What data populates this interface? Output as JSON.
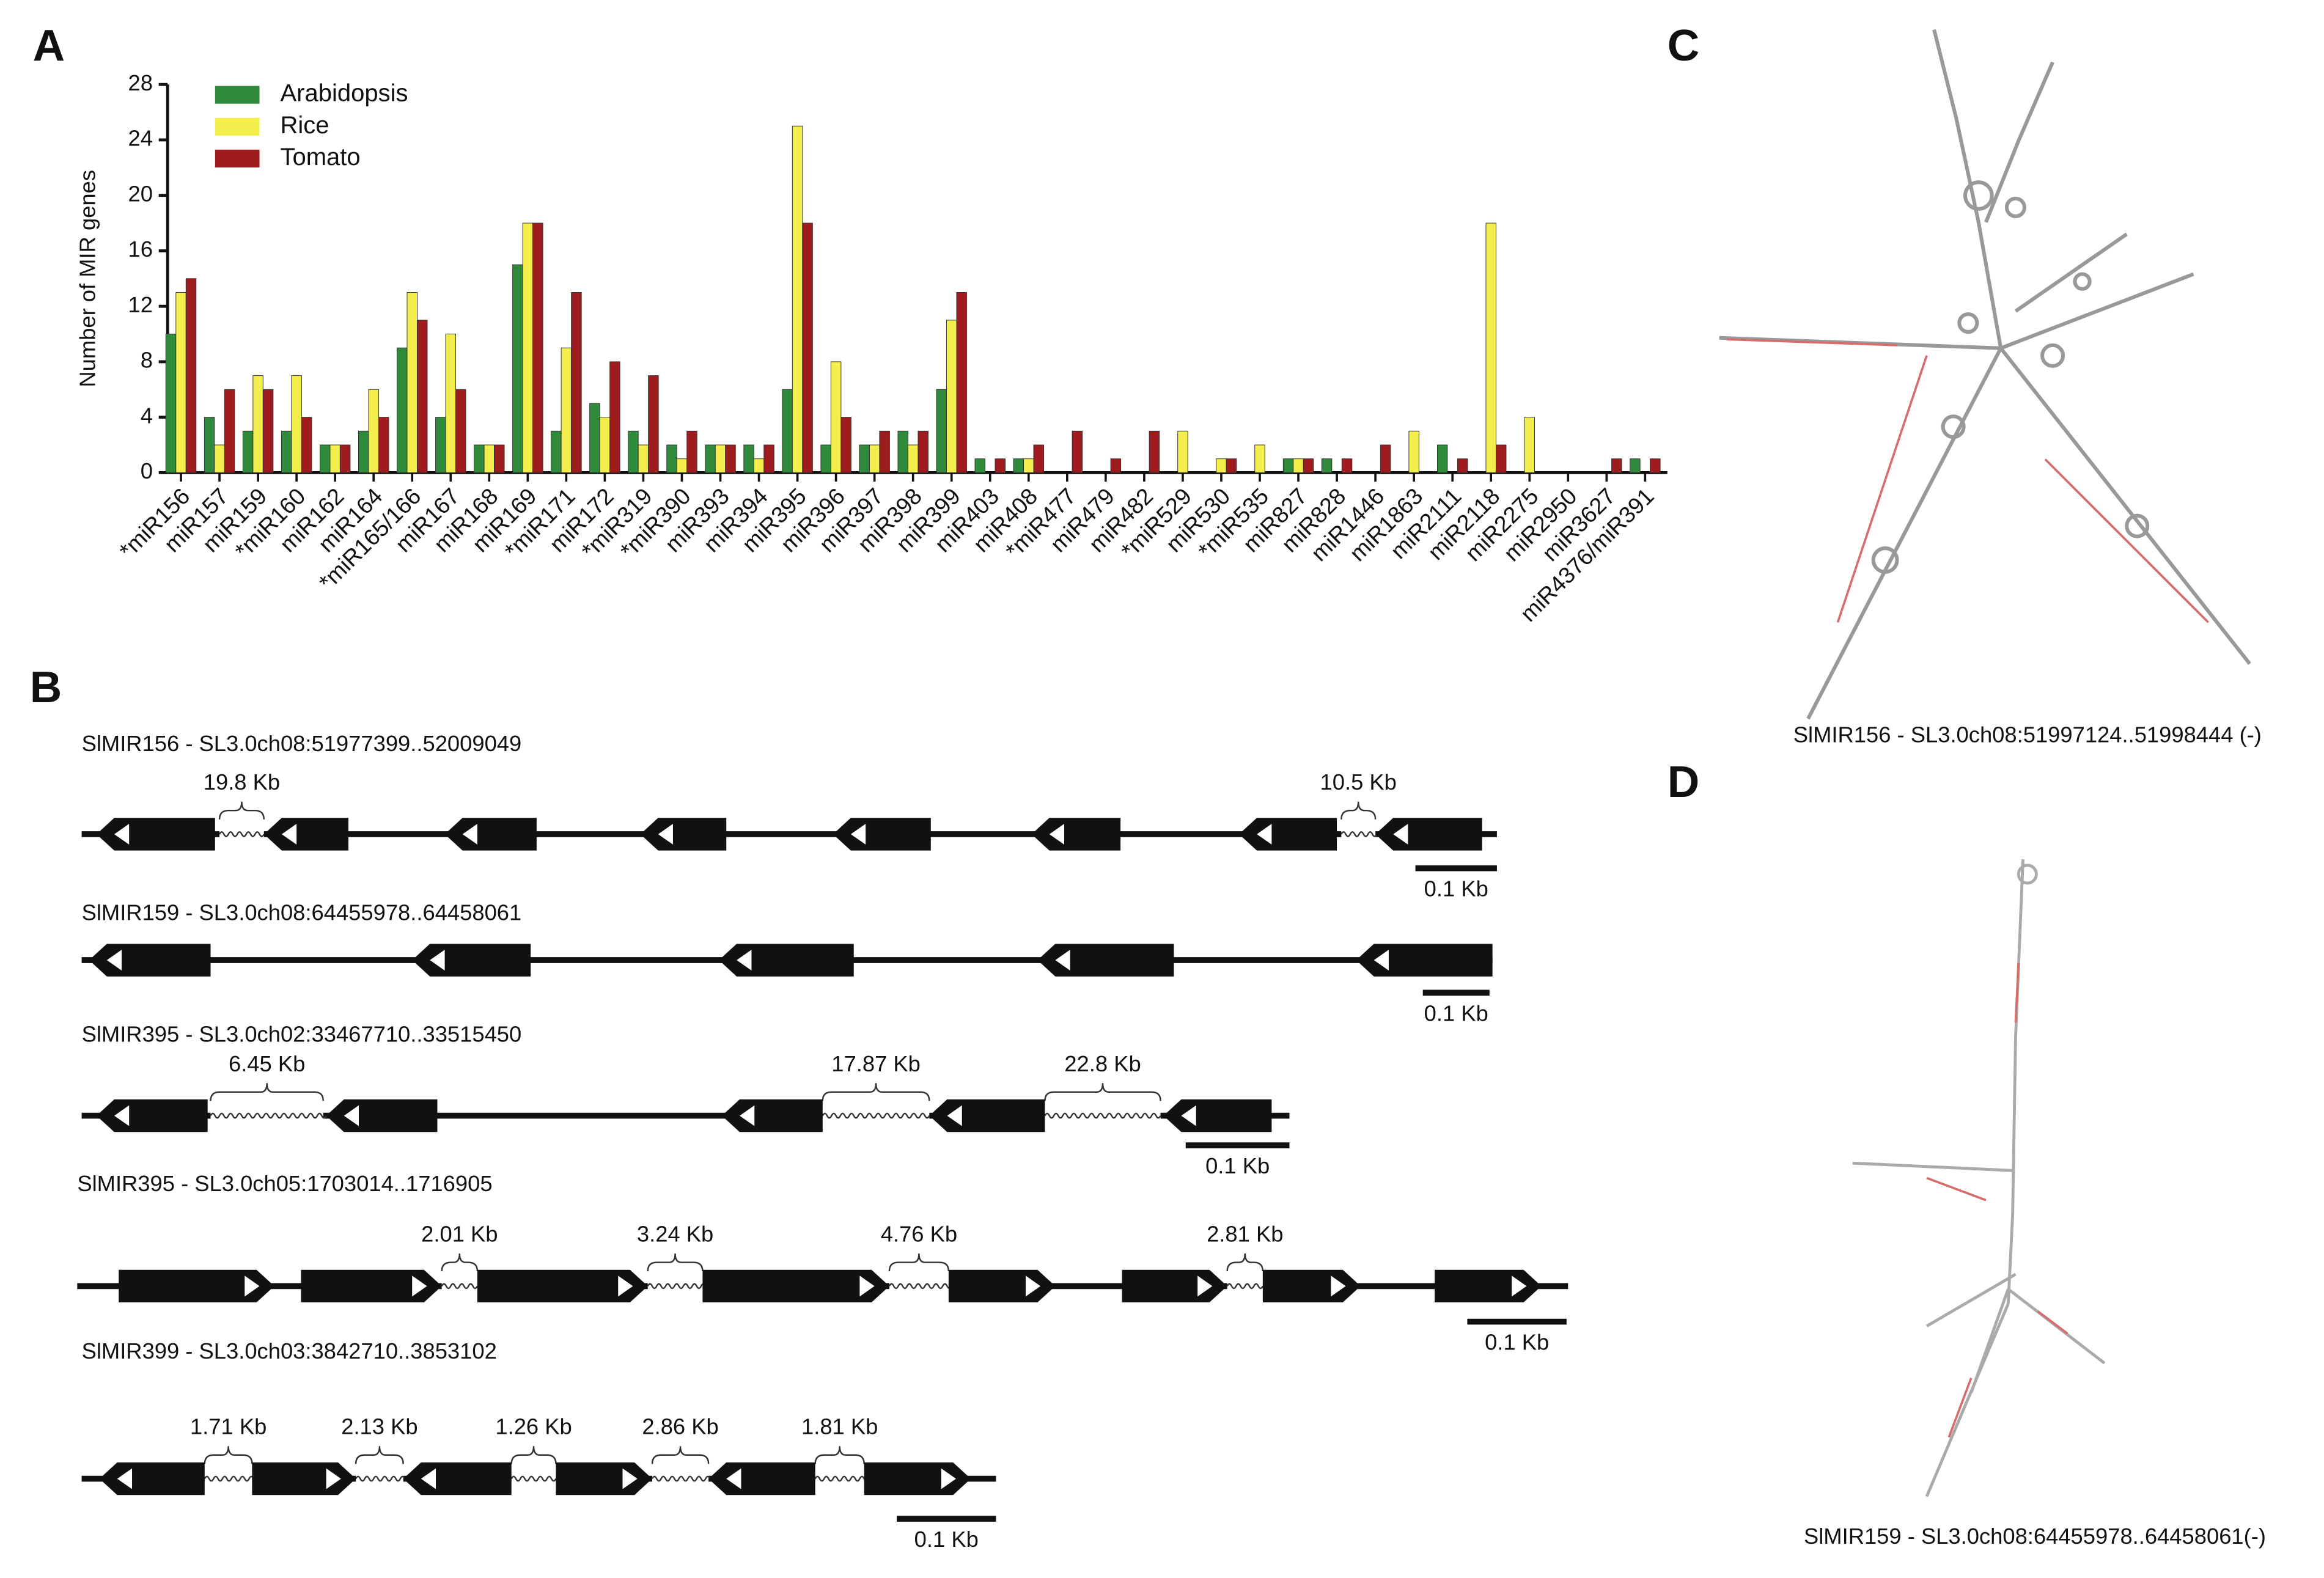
{
  "panels": [
    "A",
    "B",
    "C",
    "D"
  ],
  "chart_data": {
    "type": "bar",
    "ylabel": "Number of MIR genes",
    "categories": [
      "*miR156",
      "miR157",
      "miR159",
      "*miR160",
      "miR162",
      "miR164",
      "*miR165/166",
      "miR167",
      "miR168",
      "miR169",
      "*miR171",
      "miR172",
      "*miR319",
      "*miR390",
      "miR393",
      "miR394",
      "miR395",
      "miR396",
      "miR397",
      "miR398",
      "miR399",
      "miR403",
      "miR408",
      "*miR477",
      "miR479",
      "miR482",
      "*miR529",
      "miR530",
      "*miR535",
      "miR827",
      "miR828",
      "miR1446",
      "miR1863",
      "miR2111",
      "miR2118",
      "miR2275",
      "miR2950",
      "miR3627",
      "miR4376/miR391"
    ],
    "series": [
      {
        "name": "Arabidopsis",
        "color": "#2f8a3b",
        "values": [
          10,
          4,
          3,
          3,
          2,
          3,
          9,
          4,
          2,
          15,
          3,
          5,
          3,
          2,
          2,
          2,
          6,
          2,
          2,
          3,
          6,
          1,
          1,
          0,
          0,
          0,
          0,
          0,
          0,
          1,
          1,
          0,
          0,
          2,
          0,
          0,
          0,
          0,
          1
        ]
      },
      {
        "name": "Rice",
        "color": "#f3ee4c",
        "values": [
          13,
          2,
          7,
          7,
          2,
          6,
          13,
          10,
          2,
          18,
          9,
          4,
          2,
          1,
          2,
          1,
          25,
          8,
          2,
          2,
          11,
          0,
          1,
          0,
          0,
          0,
          3,
          1,
          2,
          1,
          0,
          0,
          3,
          0,
          18,
          4,
          0,
          0,
          0
        ]
      },
      {
        "name": "Tomato",
        "color": "#9e1b1e",
        "values": [
          14,
          6,
          6,
          4,
          2,
          4,
          11,
          6,
          2,
          18,
          13,
          8,
          7,
          3,
          2,
          2,
          18,
          4,
          3,
          3,
          13,
          1,
          2,
          3,
          1,
          3,
          0,
          1,
          0,
          1,
          1,
          2,
          0,
          1,
          2,
          0,
          0,
          1,
          1
        ]
      }
    ],
    "ylim": [
      0,
      28
    ],
    "yticks": [
      0,
      4,
      8,
      12,
      16,
      20,
      24,
      28
    ],
    "legend": "top-left"
  },
  "gene_diagrams": [
    {
      "title": "SlMIR156 - SL3.0ch08:51977399..52009049",
      "gaps": [
        "19.8 Kb",
        "10.5 Kb"
      ],
      "scale": "0.1 Kb"
    },
    {
      "title": "SlMIR159 - SL3.0ch08:64455978..64458061",
      "gaps": [],
      "scale": "0.1 Kb"
    },
    {
      "title": "SlMIR395 - SL3.0ch02:33467710..33515450",
      "gaps": [
        "6.45 Kb",
        "17.87 Kb",
        "22.8 Kb"
      ],
      "scale": "0.1 Kb"
    },
    {
      "title": "SlMIR395 - SL3.0ch05:1703014..1716905",
      "gaps": [
        "2.01 Kb",
        "3.24 Kb",
        "4.76 Kb",
        "2.81 Kb"
      ],
      "scale": "0.1 Kb"
    },
    {
      "title": "SlMIR399 - SL3.0ch03:3842710..3853102",
      "gaps": [
        "1.71 Kb",
        "2.13 Kb",
        "1.26 Kb",
        "2.86 Kb",
        "1.81 Kb"
      ],
      "scale": "0.1 Kb"
    }
  ],
  "structures": [
    {
      "caption": "SlMIR156 - SL3.0ch08:51997124..51998444 (-)"
    },
    {
      "caption": "SlMIR159 - SL3.0ch08:64455978..64458061(-)"
    }
  ]
}
